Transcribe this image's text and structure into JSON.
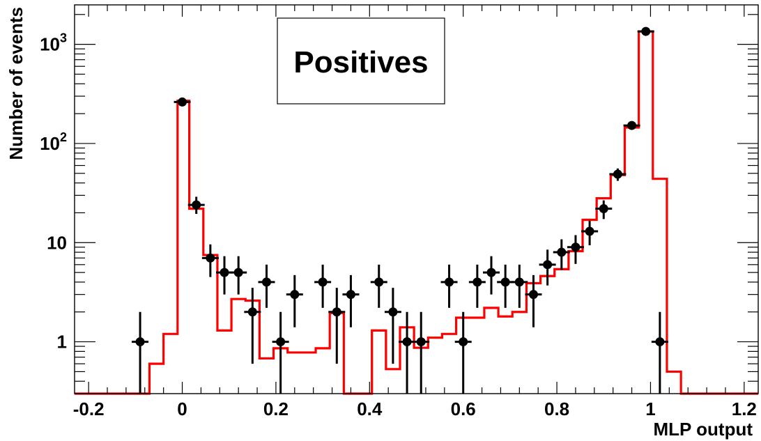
{
  "chart_data": {
    "type": "scatter",
    "title": "Positives",
    "xlabel": "MLP output",
    "ylabel": "Number of events",
    "xlim": [
      -0.23,
      1.23
    ],
    "ylim": [
      0.3,
      2500
    ],
    "log_y": true,
    "grid": false,
    "x_ticks": [
      {
        "value": -0.2,
        "label": "-0.2"
      },
      {
        "value": 0,
        "label": "0"
      },
      {
        "value": 0.2,
        "label": "0.2"
      },
      {
        "value": 0.4,
        "label": "0.4"
      },
      {
        "value": 0.6,
        "label": "0.6"
      },
      {
        "value": 0.8,
        "label": "0.8"
      },
      {
        "value": 1,
        "label": "1"
      },
      {
        "value": 1.2,
        "label": "1.2"
      }
    ],
    "y_ticks": [
      {
        "value": 1,
        "base": "1",
        "exp": ""
      },
      {
        "value": 10,
        "base": "10",
        "exp": ""
      },
      {
        "value": 100,
        "base": "10",
        "exp": "2"
      },
      {
        "value": 1000,
        "base": "10",
        "exp": "3"
      }
    ],
    "series": [
      {
        "style": "histogram",
        "color": "#ff0000",
        "bin_edges": [
          -0.23,
          -0.07,
          -0.04,
          -0.01,
          0.015,
          0.045,
          0.075,
          0.105,
          0.135,
          0.165,
          0.195,
          0.225,
          0.255,
          0.285,
          0.315,
          0.345,
          0.375,
          0.405,
          0.435,
          0.465,
          0.495,
          0.525,
          0.555,
          0.585,
          0.615,
          0.645,
          0.675,
          0.705,
          0.735,
          0.765,
          0.795,
          0.825,
          0.855,
          0.885,
          0.915,
          0.945,
          0.975,
          1.005,
          1.035,
          1.065,
          1.095,
          1.23
        ],
        "values": [
          0.3,
          0.6,
          1.2,
          270,
          22,
          7.5,
          1.3,
          2.7,
          2.6,
          0.68,
          0.86,
          0.78,
          0.78,
          0.86,
          1.95,
          0.3,
          0.3,
          1.3,
          0.53,
          1.4,
          0.87,
          1.1,
          1.2,
          1.75,
          1.75,
          2.2,
          1.8,
          2.0,
          3.9,
          4.6,
          5.4,
          8.2,
          17,
          28,
          48,
          145,
          1350,
          44,
          0.5,
          0.3,
          0.3
        ]
      },
      {
        "style": "points_with_errors",
        "color": "#000000",
        "points": [
          {
            "x": -0.09,
            "y": 1,
            "lo": 0.3,
            "hi": 2
          },
          {
            "x": 0,
            "y": 262,
            "lo": 245,
            "hi": 279
          },
          {
            "x": 0.03,
            "y": 24,
            "lo": 19.5,
            "hi": 29
          },
          {
            "x": 0.06,
            "y": 7,
            "lo": 4.5,
            "hi": 9.6
          },
          {
            "x": 0.09,
            "y": 5,
            "lo": 3,
            "hi": 7.3
          },
          {
            "x": 0.12,
            "y": 5,
            "lo": 3,
            "hi": 7.3
          },
          {
            "x": 0.15,
            "y": 2,
            "lo": 0.6,
            "hi": 3.5
          },
          {
            "x": 0.18,
            "y": 4,
            "lo": 2.2,
            "hi": 6
          },
          {
            "x": 0.21,
            "y": 1,
            "lo": 0.3,
            "hi": 2
          },
          {
            "x": 0.24,
            "y": 3,
            "lo": 1.4,
            "hi": 4.7
          },
          {
            "x": 0.3,
            "y": 4,
            "lo": 2.2,
            "hi": 6
          },
          {
            "x": 0.33,
            "y": 2,
            "lo": 0.6,
            "hi": 3.5
          },
          {
            "x": 0.36,
            "y": 3,
            "lo": 1.4,
            "hi": 4.7
          },
          {
            "x": 0.42,
            "y": 4,
            "lo": 2.2,
            "hi": 6
          },
          {
            "x": 0.45,
            "y": 2,
            "lo": 0.6,
            "hi": 3.5
          },
          {
            "x": 0.48,
            "y": 1,
            "lo": 0.3,
            "hi": 2
          },
          {
            "x": 0.51,
            "y": 1,
            "lo": 0.3,
            "hi": 2
          },
          {
            "x": 0.57,
            "y": 4,
            "lo": 2.2,
            "hi": 6
          },
          {
            "x": 0.6,
            "y": 1,
            "lo": 0.3,
            "hi": 2
          },
          {
            "x": 0.63,
            "y": 4,
            "lo": 2.2,
            "hi": 6
          },
          {
            "x": 0.66,
            "y": 5,
            "lo": 3,
            "hi": 7.3
          },
          {
            "x": 0.69,
            "y": 4,
            "lo": 2.2,
            "hi": 6
          },
          {
            "x": 0.72,
            "y": 4,
            "lo": 2.2,
            "hi": 6
          },
          {
            "x": 0.75,
            "y": 3,
            "lo": 1.4,
            "hi": 4.7
          },
          {
            "x": 0.78,
            "y": 6,
            "lo": 3.7,
            "hi": 8.5
          },
          {
            "x": 0.81,
            "y": 8,
            "lo": 5.3,
            "hi": 10.8
          },
          {
            "x": 0.84,
            "y": 9,
            "lo": 6.1,
            "hi": 11.9
          },
          {
            "x": 0.87,
            "y": 13,
            "lo": 9.4,
            "hi": 16.6
          },
          {
            "x": 0.9,
            "y": 22,
            "lo": 17.3,
            "hi": 26.7
          },
          {
            "x": 0.93,
            "y": 49,
            "lo": 42,
            "hi": 56
          },
          {
            "x": 0.96,
            "y": 152,
            "lo": 140,
            "hi": 164
          },
          {
            "x": 0.99,
            "y": 1350,
            "lo": 1313,
            "hi": 1387
          },
          {
            "x": 1.02,
            "y": 1,
            "lo": 0.3,
            "hi": 2
          }
        ]
      }
    ]
  }
}
